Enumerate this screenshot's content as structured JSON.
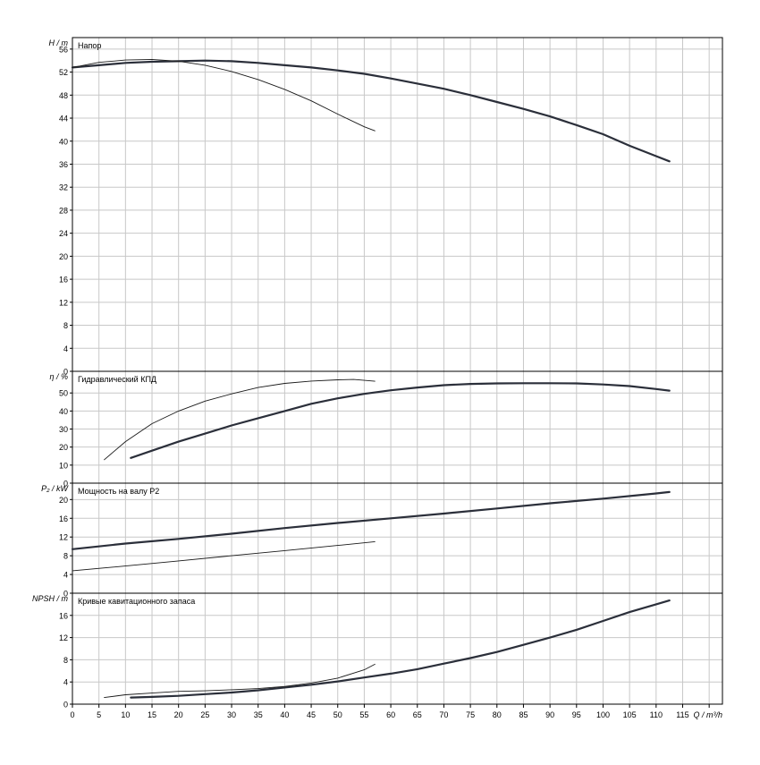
{
  "chart_data": {
    "type": "line",
    "x_axis": {
      "label": "Q / m³/h",
      "range": [
        0,
        122.5
      ],
      "ticks": [
        0,
        5,
        10,
        15,
        20,
        25,
        30,
        35,
        40,
        45,
        50,
        55,
        60,
        65,
        70,
        75,
        80,
        85,
        90,
        95,
        100,
        105,
        110,
        115
      ]
    },
    "panels": [
      {
        "id": "head",
        "title": "Напор",
        "ylabel": "H / m",
        "ylim": [
          0,
          58
        ],
        "yticks": [
          0,
          4,
          8,
          12,
          16,
          20,
          24,
          28,
          32,
          36,
          40,
          44,
          48,
          52,
          56
        ],
        "series": [
          {
            "id": "head-thick",
            "weight": "thick",
            "points": [
              [
                0,
                52.8
              ],
              [
                5,
                53.2
              ],
              [
                10,
                53.6
              ],
              [
                15,
                53.8
              ],
              [
                20,
                53.9
              ],
              [
                25,
                54.0
              ],
              [
                30,
                53.9
              ],
              [
                35,
                53.6
              ],
              [
                40,
                53.2
              ],
              [
                45,
                52.8
              ],
              [
                50,
                52.3
              ],
              [
                55,
                51.7
              ],
              [
                60,
                50.9
              ],
              [
                65,
                50.0
              ],
              [
                70,
                49.1
              ],
              [
                75,
                48.0
              ],
              [
                80,
                46.8
              ],
              [
                85,
                45.6
              ],
              [
                90,
                44.3
              ],
              [
                95,
                42.8
              ],
              [
                100,
                41.2
              ],
              [
                105,
                39.2
              ],
              [
                110,
                37.4
              ],
              [
                112.5,
                36.5
              ]
            ]
          },
          {
            "id": "head-thin",
            "weight": "thin",
            "points": [
              [
                0,
                52.8
              ],
              [
                5,
                53.7
              ],
              [
                10,
                54.1
              ],
              [
                15,
                54.2
              ],
              [
                20,
                53.9
              ],
              [
                25,
                53.2
              ],
              [
                30,
                52.1
              ],
              [
                35,
                50.7
              ],
              [
                40,
                49.0
              ],
              [
                45,
                47.0
              ],
              [
                50,
                44.7
              ],
              [
                55,
                42.5
              ],
              [
                57,
                41.8
              ]
            ]
          }
        ]
      },
      {
        "id": "efficiency",
        "title": "Гидравлический КПД",
        "ylabel": "η / %",
        "ylim": [
          0,
          62
        ],
        "yticks": [
          0,
          10,
          20,
          30,
          40,
          50
        ],
        "series": [
          {
            "id": "eff-thick",
            "weight": "thick",
            "points": [
              [
                11,
                14
              ],
              [
                15,
                18
              ],
              [
                20,
                23
              ],
              [
                25,
                27.5
              ],
              [
                30,
                32
              ],
              [
                35,
                36
              ],
              [
                40,
                40
              ],
              [
                45,
                44
              ],
              [
                50,
                47
              ],
              [
                55,
                49.5
              ],
              [
                60,
                51.5
              ],
              [
                65,
                53
              ],
              [
                70,
                54.3
              ],
              [
                75,
                55
              ],
              [
                80,
                55.3
              ],
              [
                85,
                55.4
              ],
              [
                90,
                55.4
              ],
              [
                95,
                55.3
              ],
              [
                100,
                54.7
              ],
              [
                105,
                53.8
              ],
              [
                110,
                52.2
              ],
              [
                112.5,
                51.3
              ]
            ]
          },
          {
            "id": "eff-thin",
            "weight": "thin",
            "points": [
              [
                6,
                13
              ],
              [
                10,
                23
              ],
              [
                15,
                33
              ],
              [
                20,
                40
              ],
              [
                25,
                45.5
              ],
              [
                30,
                49.5
              ],
              [
                35,
                53
              ],
              [
                40,
                55.3
              ],
              [
                45,
                56.6
              ],
              [
                50,
                57.3
              ],
              [
                53,
                57.5
              ],
              [
                57,
                56.5
              ]
            ]
          }
        ]
      },
      {
        "id": "power",
        "title": "Мощность на валу P2",
        "ylabel": "P₂ / kW",
        "ylim": [
          0,
          23.5
        ],
        "yticks": [
          0,
          4,
          8,
          12,
          16,
          20
        ],
        "series": [
          {
            "id": "power-thick",
            "weight": "thick",
            "points": [
              [
                0,
                9.4
              ],
              [
                10,
                10.6
              ],
              [
                20,
                11.6
              ],
              [
                30,
                12.7
              ],
              [
                40,
                13.9
              ],
              [
                50,
                15.0
              ],
              [
                60,
                16.0
              ],
              [
                70,
                17.0
              ],
              [
                80,
                18.1
              ],
              [
                90,
                19.2
              ],
              [
                100,
                20.2
              ],
              [
                110,
                21.3
              ],
              [
                112.5,
                21.6
              ]
            ]
          },
          {
            "id": "power-thin",
            "weight": "thin",
            "points": [
              [
                0,
                4.8
              ],
              [
                10,
                5.8
              ],
              [
                20,
                6.9
              ],
              [
                30,
                8.0
              ],
              [
                40,
                9.1
              ],
              [
                50,
                10.2
              ],
              [
                57,
                11.0
              ]
            ]
          }
        ]
      },
      {
        "id": "npsh",
        "title": "Кривые кавитационного запаса",
        "ylabel": "NPSH / m",
        "ylim": [
          0,
          20
        ],
        "yticks": [
          0,
          4,
          8,
          12,
          16
        ],
        "series": [
          {
            "id": "npsh-thick",
            "weight": "thick",
            "points": [
              [
                11,
                1.2
              ],
              [
                15,
                1.3
              ],
              [
                20,
                1.5
              ],
              [
                25,
                1.8
              ],
              [
                30,
                2.1
              ],
              [
                35,
                2.5
              ],
              [
                40,
                3.0
              ],
              [
                45,
                3.5
              ],
              [
                50,
                4.1
              ],
              [
                55,
                4.8
              ],
              [
                60,
                5.5
              ],
              [
                65,
                6.3
              ],
              [
                70,
                7.3
              ],
              [
                75,
                8.3
              ],
              [
                80,
                9.4
              ],
              [
                85,
                10.7
              ],
              [
                90,
                12.0
              ],
              [
                95,
                13.4
              ],
              [
                100,
                15.0
              ],
              [
                105,
                16.6
              ],
              [
                110,
                18.0
              ],
              [
                112.5,
                18.7
              ]
            ]
          },
          {
            "id": "npsh-thin",
            "weight": "thin",
            "points": [
              [
                6,
                1.2
              ],
              [
                10,
                1.7
              ],
              [
                15,
                2.0
              ],
              [
                20,
                2.3
              ],
              [
                25,
                2.4
              ],
              [
                30,
                2.6
              ],
              [
                35,
                2.8
              ],
              [
                40,
                3.2
              ],
              [
                45,
                3.8
              ],
              [
                50,
                4.7
              ],
              [
                55,
                6.2
              ],
              [
                57,
                7.2
              ]
            ]
          }
        ]
      }
    ]
  }
}
